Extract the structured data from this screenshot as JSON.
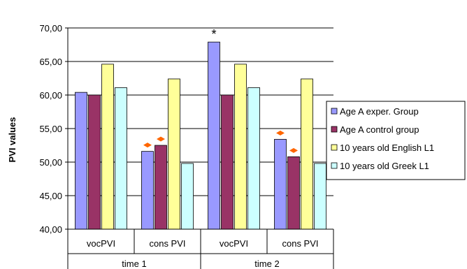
{
  "chart_data": {
    "type": "bar",
    "ylabel": "PVI values",
    "ylim": [
      40,
      70
    ],
    "yticks": [
      "40,00",
      "45,00",
      "50,00",
      "55,00",
      "60,00",
      "65,00",
      "70,00"
    ],
    "grid": true,
    "legend_position": "right",
    "categories": [
      "vocPVI",
      "cons PVI",
      "vocPVI",
      "cons PVI"
    ],
    "groups": [
      "time 1",
      "time 2"
    ],
    "series": [
      {
        "name": "Age A exper. Group",
        "color": "#9999ff",
        "values": [
          60.4,
          51.6,
          67.9,
          53.4
        ]
      },
      {
        "name": "Age A control group",
        "color": "#993366",
        "values": [
          60.0,
          52.5,
          60.0,
          50.8
        ]
      },
      {
        "name": "10 years old English L1",
        "color": "#ffff99",
        "values": [
          64.6,
          62.4,
          64.6,
          62.4
        ]
      },
      {
        "name": "10 years old Greek L1",
        "color": "#ccffff",
        "values": [
          61.1,
          49.8,
          61.1,
          49.8
        ]
      }
    ],
    "annotations": [
      {
        "text": "*",
        "category_index": 2,
        "series_index": 0
      },
      {
        "marker": "diamond",
        "color": "#ff6600",
        "category_index": 1,
        "series_index": 0
      },
      {
        "marker": "diamond",
        "color": "#ff6600",
        "category_index": 1,
        "series_index": 1
      },
      {
        "marker": "diamond",
        "color": "#ff6600",
        "category_index": 3,
        "series_index": 0
      },
      {
        "marker": "diamond",
        "color": "#ff6600",
        "category_index": 3,
        "series_index": 1
      }
    ]
  }
}
